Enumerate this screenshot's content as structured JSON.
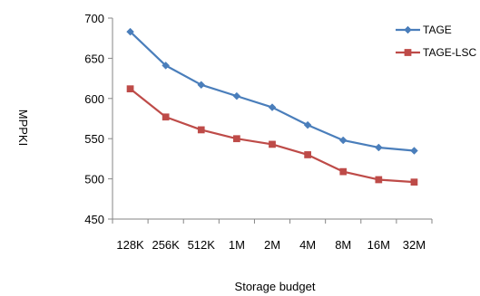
{
  "chart_data": {
    "type": "line",
    "categories": [
      "128K",
      "256K",
      "512K",
      "1M",
      "2M",
      "4M",
      "8M",
      "16M",
      "32M"
    ],
    "series": [
      {
        "name": "TAGE",
        "color": "#4a7ebb",
        "marker": "diamond",
        "values": [
          683,
          641,
          617,
          603,
          589,
          567,
          548,
          539,
          535
        ]
      },
      {
        "name": "TAGE-LSC",
        "color": "#be4b48",
        "marker": "square",
        "values": [
          612,
          577,
          561,
          550,
          543,
          530,
          509,
          499,
          496
        ]
      }
    ],
    "xlabel": "Storage budget",
    "ylabel": "MPPKI",
    "ylim": [
      450,
      700
    ],
    "yticks": [
      450,
      500,
      550,
      600,
      650,
      700
    ],
    "grid": false,
    "legend_position": "top-right"
  }
}
